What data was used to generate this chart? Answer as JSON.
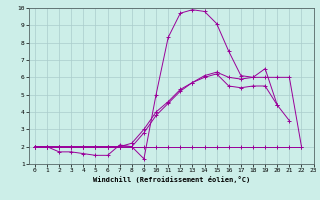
{
  "xlabel": "Windchill (Refroidissement éolien,°C)",
  "background_color": "#cceee8",
  "grid_color": "#aacccc",
  "line_color": "#990099",
  "xlim": [
    -0.5,
    23
  ],
  "ylim": [
    1,
    10
  ],
  "xticks": [
    0,
    1,
    2,
    3,
    4,
    5,
    6,
    7,
    8,
    9,
    10,
    11,
    12,
    13,
    14,
    15,
    16,
    17,
    18,
    19,
    20,
    21,
    22,
    23
  ],
  "yticks": [
    1,
    2,
    3,
    4,
    5,
    6,
    7,
    8,
    9,
    10
  ],
  "series": [
    [
      2.0,
      2.0,
      1.7,
      1.7,
      1.6,
      1.5,
      1.5,
      2.1,
      2.0,
      1.3,
      5.0,
      8.3,
      9.7,
      9.9,
      9.8,
      9.1,
      7.5,
      6.1,
      6.0,
      6.5,
      4.4,
      3.5,
      null,
      null
    ],
    [
      2.0,
      2.0,
      2.0,
      2.0,
      2.0,
      2.0,
      2.0,
      2.0,
      2.0,
      2.8,
      3.8,
      4.5,
      5.2,
      5.7,
      6.0,
      6.2,
      5.5,
      5.4,
      5.5,
      5.5,
      4.4,
      null,
      null,
      null
    ],
    [
      2.0,
      2.0,
      2.0,
      2.0,
      2.0,
      2.0,
      2.0,
      2.0,
      2.2,
      3.0,
      4.0,
      4.6,
      5.3,
      5.7,
      6.1,
      6.3,
      6.0,
      5.9,
      6.0,
      6.0,
      6.0,
      6.0,
      2.0,
      null
    ],
    [
      2.0,
      2.0,
      2.0,
      2.0,
      2.0,
      2.0,
      2.0,
      2.0,
      2.0,
      2.0,
      2.0,
      2.0,
      2.0,
      2.0,
      2.0,
      2.0,
      2.0,
      2.0,
      2.0,
      2.0,
      2.0,
      2.0,
      2.0,
      null
    ]
  ]
}
